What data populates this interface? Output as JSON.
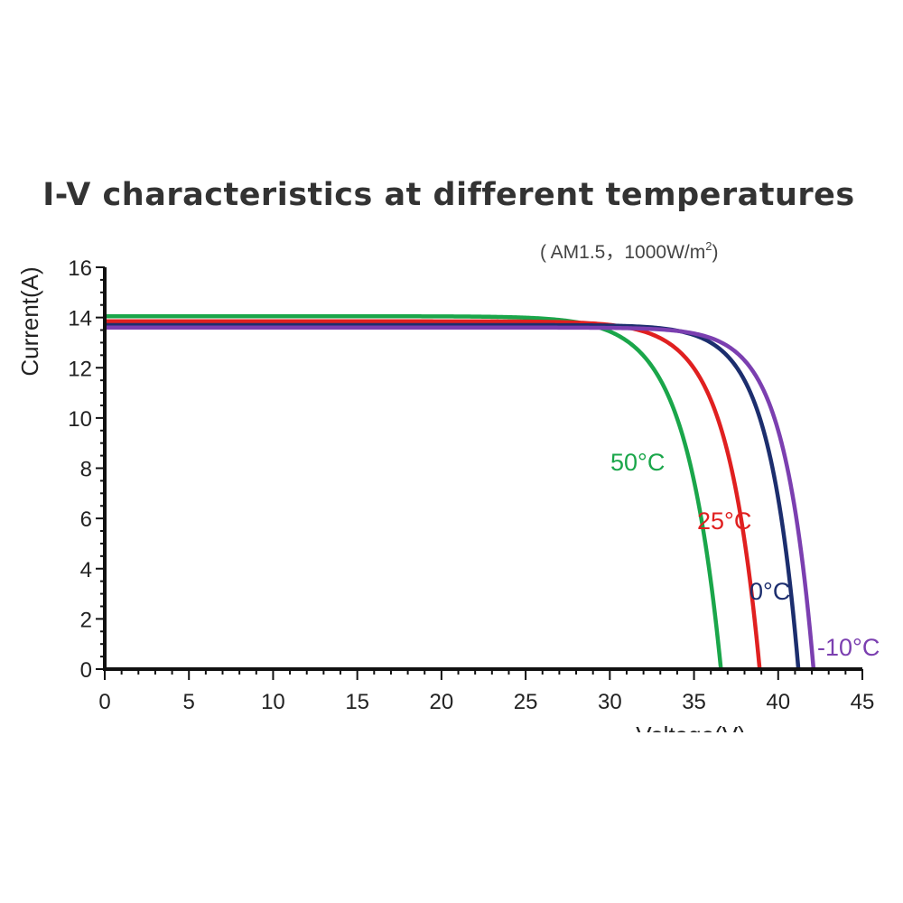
{
  "chart_data": {
    "type": "line",
    "title": "I-V characteristics at different temperatures",
    "subtitle": {
      "prefix": "( AM1.5，1000W/m",
      "sup": "2",
      "suffix": ")"
    },
    "xlabel": "Voltage(V)",
    "ylabel": "Current(A)",
    "xlim": [
      0,
      45
    ],
    "ylim": [
      0,
      16
    ],
    "xticks": [
      "0",
      "5",
      "10",
      "15",
      "20",
      "25",
      "30",
      "35",
      "40",
      "45"
    ],
    "yticks": [
      "0",
      "2",
      "4",
      "6",
      "8",
      "10",
      "12",
      "14",
      "16"
    ],
    "grid": false,
    "series": [
      {
        "name": "50°C",
        "label": "50°C",
        "color": "#1aa64a",
        "isc": 14.05,
        "voc": 36.6,
        "knee_sharpness": 2.1,
        "x": [
          0,
          25,
          28,
          30,
          32,
          34,
          35,
          36,
          36.6
        ],
        "y": [
          14.05,
          14.0,
          13.7,
          13.0,
          11.5,
          7.6,
          5.0,
          2.0,
          0
        ]
      },
      {
        "name": "25°C",
        "label": "25°C",
        "color": "#e02020",
        "isc": 13.85,
        "voc": 38.9,
        "knee_sharpness": 1.95,
        "x": [
          0,
          28,
          31,
          33,
          35,
          36,
          37,
          38,
          38.9
        ],
        "y": [
          13.85,
          13.8,
          13.5,
          12.7,
          10.3,
          8.2,
          5.7,
          2.8,
          0
        ]
      },
      {
        "name": "0°C",
        "label": "0°C",
        "color": "#1c2e6e",
        "isc": 13.7,
        "voc": 41.2,
        "knee_sharpness": 1.75,
        "x": [
          0,
          30,
          34,
          36,
          38,
          39,
          40,
          41,
          41.2
        ],
        "y": [
          13.7,
          13.68,
          13.3,
          12.3,
          9.4,
          7.0,
          4.3,
          0.9,
          0
        ]
      },
      {
        "name": "-10°C",
        "label": "-10°C",
        "color": "#7b3fb0",
        "isc": 13.6,
        "voc": 42.1,
        "knee_sharpness": 1.75,
        "x": [
          0,
          31,
          35,
          37,
          39,
          40,
          41,
          42,
          42.1
        ],
        "y": [
          13.6,
          13.58,
          13.2,
          12.2,
          9.2,
          7.0,
          4.2,
          0.6,
          0
        ]
      }
    ]
  }
}
